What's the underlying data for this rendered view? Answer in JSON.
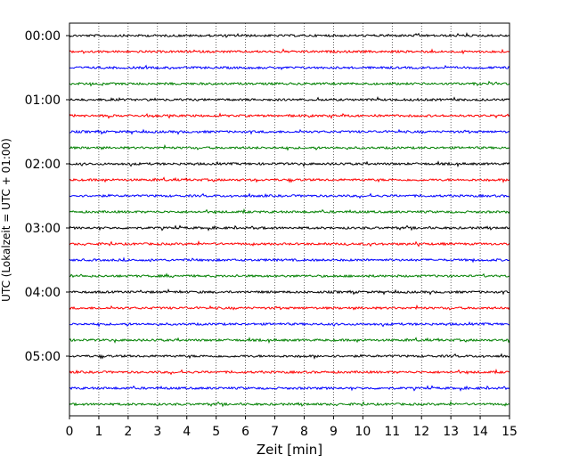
{
  "chart_data": {
    "type": "line",
    "xlabel": "Zeit  [min]",
    "ylabel": "UTC (Lokalzeit = UTC + 01:00)",
    "xlim": [
      0,
      15
    ],
    "x_ticks": [
      "0",
      "1",
      "2",
      "3",
      "4",
      "5",
      "6",
      "7",
      "8",
      "9",
      "10",
      "11",
      "12",
      "13",
      "14",
      "15"
    ],
    "y_tick_labels": [
      "00:00",
      "01:00",
      "02:00",
      "03:00",
      "04:00",
      "05:00"
    ],
    "grid": "vertical dotted",
    "trace_interval_min": 15,
    "trace_count": 24,
    "trace_colors": [
      "#000000",
      "#ff0000",
      "#0000ff",
      "#008000"
    ]
  }
}
